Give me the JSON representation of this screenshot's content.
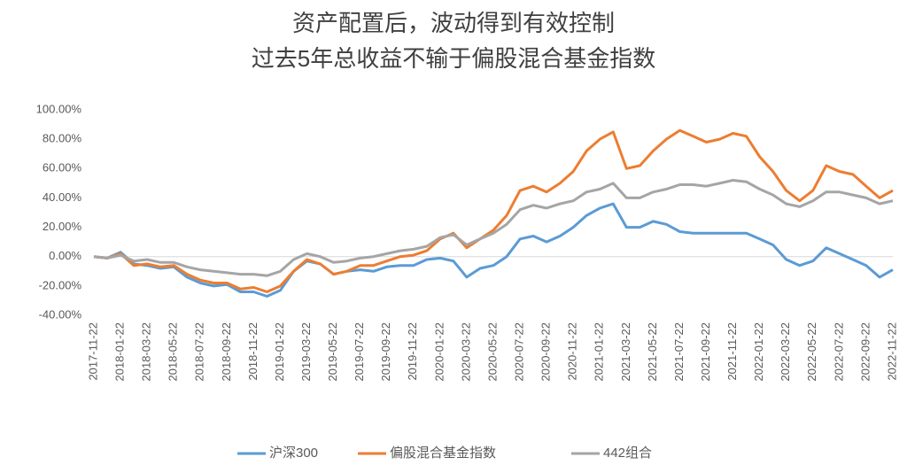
{
  "chart_data": {
    "type": "line",
    "title": [
      "资产配置后，波动得到有效控制",
      "过去5年总收益不输于偏股混合基金指数"
    ],
    "categories": [
      "2017-11-22",
      null,
      "2018-01-22",
      null,
      "2018-03-22",
      null,
      "2018-05-22",
      null,
      "2018-07-22",
      null,
      "2018-09-22",
      null,
      "2018-11-22",
      null,
      "2019-01-22",
      null,
      "2019-03-22",
      null,
      "2019-05-22",
      null,
      "2019-07-22",
      null,
      "2019-09-22",
      null,
      "2019-11-22",
      null,
      "2020-01-22",
      null,
      "2020-03-22",
      null,
      "2020-05-22",
      null,
      "2020-07-22",
      null,
      "2020-09-22",
      null,
      "2020-11-22",
      null,
      "2021-01-22",
      null,
      "2021-03-22",
      null,
      "2021-05-22",
      null,
      "2021-07-22",
      null,
      "2021-09-22",
      null,
      "2021-11-22",
      null,
      "2022-01-22",
      null,
      "2022-03-22",
      null,
      "2022-05-22",
      null,
      "2022-07-22",
      null,
      "2022-09-22",
      null,
      "2022-11-22"
    ],
    "series": [
      {
        "name": "沪深300",
        "color": "#5b9bd5",
        "values": [
          0,
          -1,
          3,
          -5,
          -6,
          -8,
          -7,
          -14,
          -18,
          -20,
          -19,
          -24,
          -24,
          -27,
          -23,
          -10,
          -3,
          -5,
          -12,
          -10,
          -9,
          -10,
          -7,
          -6,
          -6,
          -2,
          -1,
          -3,
          -14,
          -8,
          -6,
          0,
          12,
          14,
          10,
          14,
          20,
          28,
          33,
          36,
          20,
          20,
          24,
          22,
          17,
          16,
          16,
          16,
          16,
          16,
          12,
          8,
          -2,
          -6,
          -3,
          6,
          2,
          -2,
          -6,
          -14,
          -9
        ]
      },
      {
        "name": "偏股混合基金指数",
        "color": "#ed7d31",
        "values": [
          0,
          -1,
          2,
          -6,
          -5,
          -7,
          -6,
          -12,
          -16,
          -18,
          -18,
          -22,
          -21,
          -24,
          -20,
          -10,
          -2,
          -5,
          -12,
          -10,
          -6,
          -6,
          -3,
          0,
          1,
          4,
          12,
          16,
          6,
          12,
          18,
          28,
          45,
          48,
          44,
          50,
          58,
          72,
          80,
          85,
          60,
          62,
          72,
          80,
          86,
          82,
          78,
          80,
          84,
          82,
          68,
          58,
          45,
          38,
          45,
          62,
          58,
          56,
          48,
          40,
          45
        ]
      },
      {
        "name": "442组合",
        "color": "#a5a5a5",
        "values": [
          0,
          -1,
          1,
          -3,
          -2,
          -4,
          -4,
          -7,
          -9,
          -10,
          -11,
          -12,
          -12,
          -13,
          -10,
          -2,
          2,
          0,
          -4,
          -3,
          -1,
          0,
          2,
          4,
          5,
          7,
          13,
          15,
          8,
          12,
          16,
          22,
          32,
          35,
          33,
          36,
          38,
          44,
          46,
          50,
          40,
          40,
          44,
          46,
          49,
          49,
          48,
          50,
          52,
          51,
          46,
          42,
          36,
          34,
          38,
          44,
          44,
          42,
          40,
          36,
          38
        ]
      }
    ],
    "ylim": [
      -40,
      100
    ],
    "yticks": [
      {
        "value": -40,
        "label": "-40.00%"
      },
      {
        "value": -20,
        "label": "-20.00%"
      },
      {
        "value": 0,
        "label": "0.00%"
      },
      {
        "value": 20,
        "label": "20.00%"
      },
      {
        "value": 40,
        "label": "40.00%"
      },
      {
        "value": 60,
        "label": "60.00%"
      },
      {
        "value": 80,
        "label": "80.00%"
      },
      {
        "value": 100,
        "label": "100.00%"
      }
    ],
    "legend": "bottom"
  }
}
